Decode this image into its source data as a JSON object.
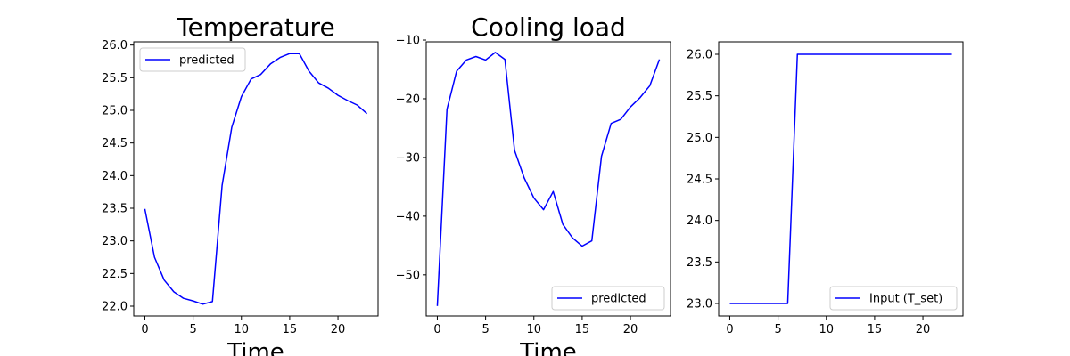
{
  "chart_data": [
    {
      "type": "line",
      "title": "Temperature",
      "xlabel": "Time",
      "ylabel": "",
      "xlim": [
        -1.15,
        24.15
      ],
      "ylim": [
        21.85,
        26.05
      ],
      "xticks": [
        0,
        5,
        10,
        15,
        20
      ],
      "yticks": [
        22.0,
        22.5,
        23.0,
        23.5,
        24.0,
        24.5,
        25.0,
        25.5,
        26.0
      ],
      "ytick_labels": [
        "22.0",
        "22.5",
        "23.0",
        "23.5",
        "24.0",
        "24.5",
        "25.0",
        "25.5",
        "26.0"
      ],
      "legend_position": "top-left",
      "grid": false,
      "series": [
        {
          "name": "predicted",
          "color": "#0000ff",
          "x": [
            0,
            1,
            2,
            3,
            4,
            5,
            6,
            7,
            8,
            9,
            10,
            11,
            12,
            13,
            14,
            15,
            16,
            17,
            18,
            19,
            20,
            21,
            22,
            23
          ],
          "y": [
            23.49,
            22.75,
            22.4,
            22.22,
            22.12,
            22.08,
            22.03,
            22.07,
            23.85,
            24.74,
            25.21,
            25.48,
            25.55,
            25.71,
            25.81,
            25.87,
            25.87,
            25.6,
            25.42,
            25.34,
            25.23,
            25.15,
            25.08,
            24.95
          ]
        }
      ]
    },
    {
      "type": "line",
      "title": "Cooling load",
      "xlabel": "Time",
      "ylabel": "",
      "xlim": [
        -1.15,
        24.15
      ],
      "ylim": [
        -57.0,
        -10.3
      ],
      "xticks": [
        0,
        5,
        10,
        15,
        20
      ],
      "yticks": [
        -50,
        -40,
        -30,
        -20,
        -10
      ],
      "ytick_labels": [
        "−50",
        "−40",
        "−30",
        "−20",
        "−10"
      ],
      "legend_position": "bottom-right",
      "grid": false,
      "series": [
        {
          "name": "predicted",
          "color": "#0000ff",
          "x": [
            0,
            1,
            2,
            3,
            4,
            5,
            6,
            7,
            8,
            9,
            10,
            11,
            12,
            13,
            14,
            15,
            16,
            17,
            18,
            19,
            20,
            21,
            22,
            23
          ],
          "y": [
            -55.3,
            -21.8,
            -15.3,
            -13.4,
            -12.8,
            -13.4,
            -12.1,
            -13.3,
            -28.8,
            -33.5,
            -36.9,
            -38.9,
            -35.8,
            -41.4,
            -43.7,
            -45.1,
            -44.2,
            -29.8,
            -24.2,
            -23.5,
            -21.4,
            -19.8,
            -17.8,
            -13.3
          ]
        }
      ]
    },
    {
      "type": "line",
      "title": "",
      "xlabel": "",
      "ylabel": "",
      "xlim": [
        -1.15,
        24.15
      ],
      "ylim": [
        22.85,
        26.15
      ],
      "xticks": [
        0,
        5,
        10,
        15,
        20
      ],
      "yticks": [
        23.0,
        23.5,
        24.0,
        24.5,
        25.0,
        25.5,
        26.0
      ],
      "ytick_labels": [
        "23.0",
        "23.5",
        "24.0",
        "24.5",
        "25.0",
        "25.5",
        "26.0"
      ],
      "legend_position": "bottom-right",
      "grid": false,
      "series": [
        {
          "name": "Input (T_set)",
          "color": "#0000ff",
          "x": [
            0,
            1,
            2,
            3,
            4,
            5,
            6,
            7,
            8,
            9,
            10,
            11,
            12,
            13,
            14,
            15,
            16,
            17,
            18,
            19,
            20,
            21,
            22,
            23
          ],
          "y": [
            23,
            23,
            23,
            23,
            23,
            23,
            23,
            26,
            26,
            26,
            26,
            26,
            26,
            26,
            26,
            26,
            26,
            26,
            26,
            26,
            26,
            26,
            26,
            26
          ]
        }
      ]
    }
  ]
}
